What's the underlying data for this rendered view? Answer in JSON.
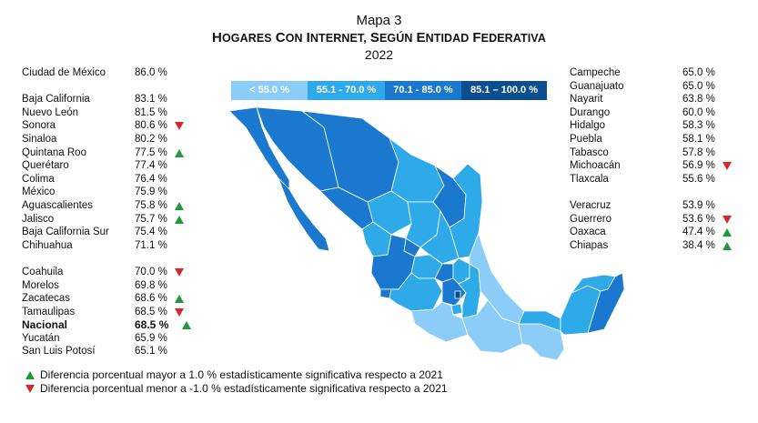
{
  "title": {
    "line1": "Mapa 3",
    "line2": "Hogares con internet, según entidad federativa",
    "line3": "2022"
  },
  "colors": {
    "c1": "#8ccdf7",
    "c2": "#2faae9",
    "c3": "#1a78cf",
    "c4": "#0b4f8f",
    "up": "#1e9a3a",
    "down": "#d42a2a"
  },
  "legend": [
    {
      "label": "< 55.0 %",
      "color": "#8ccdf7"
    },
    {
      "label": "55.1 - 70.0 %",
      "color": "#2faae9"
    },
    {
      "label": "70.1 - 85.0 %",
      "color": "#1a78cf"
    },
    {
      "label": "85.1 – 100.0 %",
      "color": "#0b4f8f"
    }
  ],
  "left_group_1": [
    {
      "name": "Ciudad de México",
      "value": "86.0 %",
      "trend": ""
    }
  ],
  "left_group_2": [
    {
      "name": "Baja California",
      "value": "83.1 %",
      "trend": ""
    },
    {
      "name": "Nuevo León",
      "value": "81.5 %",
      "trend": ""
    },
    {
      "name": "Sonora",
      "value": "80.6 %",
      "trend": "down"
    },
    {
      "name": "Sinaloa",
      "value": "80.2 %",
      "trend": ""
    },
    {
      "name": "Quintana Roo",
      "value": "77.5 %",
      "trend": "up"
    },
    {
      "name": "Querétaro",
      "value": "77.4 %",
      "trend": ""
    },
    {
      "name": "Colima",
      "value": "76.4 %",
      "trend": ""
    },
    {
      "name": "México",
      "value": "75.9 %",
      "trend": ""
    },
    {
      "name": "Aguascalientes",
      "value": "75.8 %",
      "trend": "up"
    },
    {
      "name": "Jalisco",
      "value": "75.7 %",
      "trend": "up"
    },
    {
      "name": "Baja California Sur",
      "value": "75.4 %",
      "trend": ""
    },
    {
      "name": "Chihuahua",
      "value": "71.1 %",
      "trend": ""
    }
  ],
  "left_group_3": [
    {
      "name": "Coahuila",
      "value": "70.0 %",
      "trend": "down"
    },
    {
      "name": "Morelos",
      "value": "69.8 %",
      "trend": ""
    },
    {
      "name": "Zacatecas",
      "value": "68.6 %",
      "trend": "up"
    },
    {
      "name": "Tamaulipas",
      "value": "68.5 %",
      "trend": "down"
    },
    {
      "name": "Nacional",
      "value": "68.5 %",
      "trend": "up",
      "bold": true
    },
    {
      "name": "Yucatán",
      "value": "65.9 %",
      "trend": ""
    },
    {
      "name": "San Luis Potosí",
      "value": "65.1 %",
      "trend": ""
    }
  ],
  "right_group_1": [
    {
      "name": "Campeche",
      "value": "65.0 %",
      "trend": ""
    },
    {
      "name": "Guanajuato",
      "value": "65.0 %",
      "trend": ""
    },
    {
      "name": "Nayarit",
      "value": "63.8 %",
      "trend": ""
    },
    {
      "name": "Durango",
      "value": "60.0 %",
      "trend": ""
    },
    {
      "name": "Hidalgo",
      "value": "58.3 %",
      "trend": ""
    },
    {
      "name": "Puebla",
      "value": "58.1 %",
      "trend": ""
    },
    {
      "name": "Tabasco",
      "value": "57.8 %",
      "trend": ""
    },
    {
      "name": "Michoacán",
      "value": "56.9 %",
      "trend": "down"
    },
    {
      "name": "Tlaxcala",
      "value": "55.6 %",
      "trend": ""
    }
  ],
  "right_group_2": [
    {
      "name": "Veracruz",
      "value": "53.9 %",
      "trend": ""
    },
    {
      "name": "Guerrero",
      "value": "53.6 %",
      "trend": "down"
    },
    {
      "name": "Oaxaca",
      "value": "47.4 %",
      "trend": "up"
    },
    {
      "name": "Chiapas",
      "value": "38.4 %",
      "trend": "up"
    }
  ],
  "notes": {
    "up": "Diferencia porcentual mayor a 1.0 % estadísticamente significativa respecto a 2021",
    "down": "Diferencia porcentual menor a -1.0 % estadísticamente significativa respecto a 2021"
  }
}
